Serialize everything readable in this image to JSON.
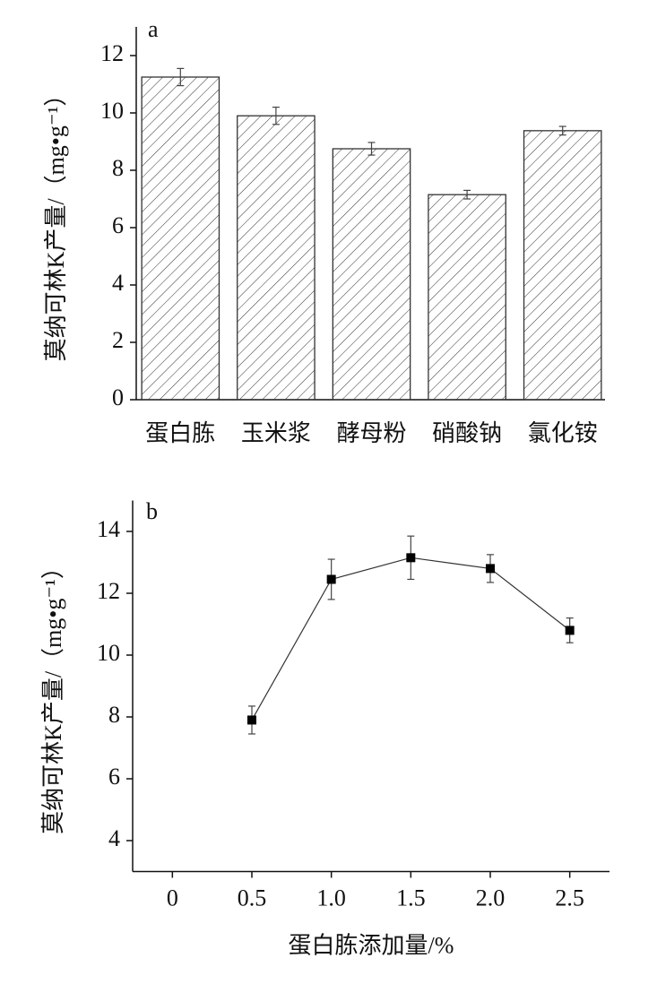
{
  "chart_data": [
    {
      "type": "bar",
      "panel": "a",
      "ylabel": "莫纳可林K产量/（mg•g⁻¹）",
      "categories": [
        "蛋白胨",
        "玉米浆",
        "酵母粉",
        "硝酸钠",
        "氯化铵"
      ],
      "values": [
        11.25,
        9.9,
        8.75,
        7.15,
        9.38
      ],
      "errors": [
        0.3,
        0.3,
        0.22,
        0.15,
        0.15
      ],
      "color": "#333333",
      "ylim": [
        0,
        13
      ],
      "yticks": [
        0,
        2,
        4,
        6,
        8,
        10,
        12
      ]
    },
    {
      "type": "line",
      "panel": "b",
      "ylabel": "莫纳可林K产量/（mg•g⁻¹）",
      "xlabel": "蛋白胨添加量/%",
      "x": [
        0.5,
        1,
        1.5,
        2,
        2.5
      ],
      "values": [
        7.9,
        12.45,
        13.15,
        12.8,
        10.8
      ],
      "errors": [
        0.45,
        0.65,
        0.7,
        0.45,
        0.4
      ],
      "color": "#000000",
      "xlim": [
        -0.25,
        2.75
      ],
      "xticks": [
        0,
        0.5,
        {
          "value": 1,
          "label": "1.0"
        },
        1.5,
        {
          "value": 2,
          "label": "2.0"
        },
        2.5
      ],
      "ylim": [
        3,
        15
      ],
      "yticks": [
        4,
        6,
        8,
        10,
        12,
        14
      ]
    }
  ]
}
